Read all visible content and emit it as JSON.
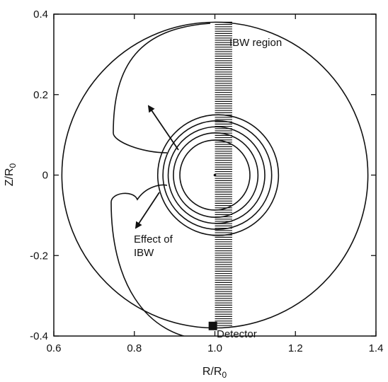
{
  "figure": {
    "x_axis": {
      "label": "R/R",
      "label_subscript": "0",
      "range": [
        0.6,
        1.4
      ],
      "ticks": [
        0.6,
        0.8,
        1.0,
        1.2,
        1.4
      ],
      "tick_labels": [
        "0.6",
        "0.8",
        "1.0",
        "1.2",
        "1.4"
      ]
    },
    "y_axis": {
      "label": "Z/R",
      "label_subscript": "0",
      "range": [
        -0.4,
        0.4
      ],
      "ticks": [
        -0.4,
        -0.2,
        0,
        0.2,
        0.4
      ],
      "tick_labels": [
        "-0.4",
        "-0.2",
        "0",
        "0.2",
        "0.4"
      ]
    },
    "annotations": {
      "ibw_region": "IBW region",
      "effect_line1": "Effect of",
      "effect_line2": "IBW",
      "detector": "Detector"
    },
    "ibw_region_band": {
      "r_min": 1.0,
      "r_max": 1.043
    },
    "detector_position": {
      "r": 0.995,
      "z": -0.375
    },
    "plasma_center": {
      "r": 1.0,
      "z": 0.0
    },
    "outer_boundary": {
      "center_r": 1.0,
      "center_z": 0.0,
      "radius": 0.38
    },
    "nested_contours": [
      {
        "center_r": 1.0,
        "radius": 0.087
      },
      {
        "center_r": 1.002,
        "radius": 0.105
      },
      {
        "center_r": 1.004,
        "radius": 0.12
      },
      {
        "center_r": 1.006,
        "radius": 0.135
      },
      {
        "center_r": 1.008,
        "radius": 0.15
      }
    ],
    "line_color": "#111111",
    "background_color": "#ffffff"
  }
}
